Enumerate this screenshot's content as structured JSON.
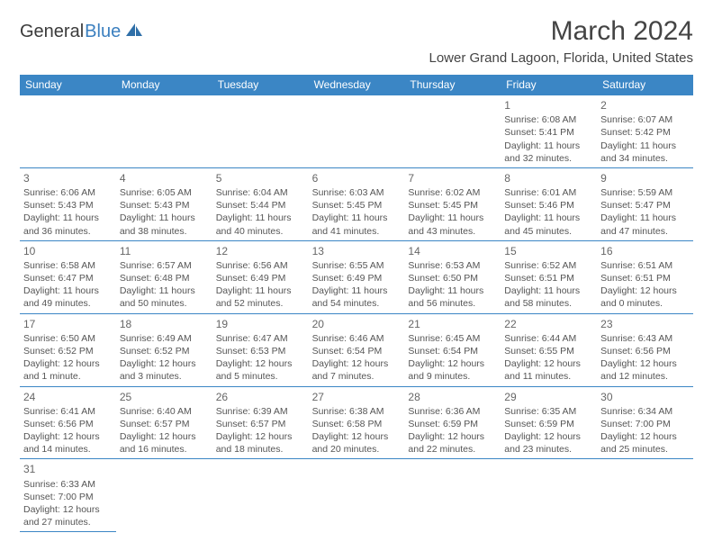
{
  "logo": {
    "word1": "General",
    "word2": "Blue"
  },
  "title": "March 2024",
  "location": "Lower Grand Lagoon, Florida, United States",
  "header_bg": "#3b86c5",
  "header_text_color": "#ffffff",
  "border_color": "#3b86c5",
  "text_color": "#555555",
  "weekdays": [
    "Sunday",
    "Monday",
    "Tuesday",
    "Wednesday",
    "Thursday",
    "Friday",
    "Saturday"
  ],
  "first_weekday_index": 5,
  "days": [
    {
      "n": 1,
      "sunrise": "6:08 AM",
      "sunset": "5:41 PM",
      "daylight": "11 hours and 32 minutes."
    },
    {
      "n": 2,
      "sunrise": "6:07 AM",
      "sunset": "5:42 PM",
      "daylight": "11 hours and 34 minutes."
    },
    {
      "n": 3,
      "sunrise": "6:06 AM",
      "sunset": "5:43 PM",
      "daylight": "11 hours and 36 minutes."
    },
    {
      "n": 4,
      "sunrise": "6:05 AM",
      "sunset": "5:43 PM",
      "daylight": "11 hours and 38 minutes."
    },
    {
      "n": 5,
      "sunrise": "6:04 AM",
      "sunset": "5:44 PM",
      "daylight": "11 hours and 40 minutes."
    },
    {
      "n": 6,
      "sunrise": "6:03 AM",
      "sunset": "5:45 PM",
      "daylight": "11 hours and 41 minutes."
    },
    {
      "n": 7,
      "sunrise": "6:02 AM",
      "sunset": "5:45 PM",
      "daylight": "11 hours and 43 minutes."
    },
    {
      "n": 8,
      "sunrise": "6:01 AM",
      "sunset": "5:46 PM",
      "daylight": "11 hours and 45 minutes."
    },
    {
      "n": 9,
      "sunrise": "5:59 AM",
      "sunset": "5:47 PM",
      "daylight": "11 hours and 47 minutes."
    },
    {
      "n": 10,
      "sunrise": "6:58 AM",
      "sunset": "6:47 PM",
      "daylight": "11 hours and 49 minutes."
    },
    {
      "n": 11,
      "sunrise": "6:57 AM",
      "sunset": "6:48 PM",
      "daylight": "11 hours and 50 minutes."
    },
    {
      "n": 12,
      "sunrise": "6:56 AM",
      "sunset": "6:49 PM",
      "daylight": "11 hours and 52 minutes."
    },
    {
      "n": 13,
      "sunrise": "6:55 AM",
      "sunset": "6:49 PM",
      "daylight": "11 hours and 54 minutes."
    },
    {
      "n": 14,
      "sunrise": "6:53 AM",
      "sunset": "6:50 PM",
      "daylight": "11 hours and 56 minutes."
    },
    {
      "n": 15,
      "sunrise": "6:52 AM",
      "sunset": "6:51 PM",
      "daylight": "11 hours and 58 minutes."
    },
    {
      "n": 16,
      "sunrise": "6:51 AM",
      "sunset": "6:51 PM",
      "daylight": "12 hours and 0 minutes."
    },
    {
      "n": 17,
      "sunrise": "6:50 AM",
      "sunset": "6:52 PM",
      "daylight": "12 hours and 1 minute."
    },
    {
      "n": 18,
      "sunrise": "6:49 AM",
      "sunset": "6:52 PM",
      "daylight": "12 hours and 3 minutes."
    },
    {
      "n": 19,
      "sunrise": "6:47 AM",
      "sunset": "6:53 PM",
      "daylight": "12 hours and 5 minutes."
    },
    {
      "n": 20,
      "sunrise": "6:46 AM",
      "sunset": "6:54 PM",
      "daylight": "12 hours and 7 minutes."
    },
    {
      "n": 21,
      "sunrise": "6:45 AM",
      "sunset": "6:54 PM",
      "daylight": "12 hours and 9 minutes."
    },
    {
      "n": 22,
      "sunrise": "6:44 AM",
      "sunset": "6:55 PM",
      "daylight": "12 hours and 11 minutes."
    },
    {
      "n": 23,
      "sunrise": "6:43 AM",
      "sunset": "6:56 PM",
      "daylight": "12 hours and 12 minutes."
    },
    {
      "n": 24,
      "sunrise": "6:41 AM",
      "sunset": "6:56 PM",
      "daylight": "12 hours and 14 minutes."
    },
    {
      "n": 25,
      "sunrise": "6:40 AM",
      "sunset": "6:57 PM",
      "daylight": "12 hours and 16 minutes."
    },
    {
      "n": 26,
      "sunrise": "6:39 AM",
      "sunset": "6:57 PM",
      "daylight": "12 hours and 18 minutes."
    },
    {
      "n": 27,
      "sunrise": "6:38 AM",
      "sunset": "6:58 PM",
      "daylight": "12 hours and 20 minutes."
    },
    {
      "n": 28,
      "sunrise": "6:36 AM",
      "sunset": "6:59 PM",
      "daylight": "12 hours and 22 minutes."
    },
    {
      "n": 29,
      "sunrise": "6:35 AM",
      "sunset": "6:59 PM",
      "daylight": "12 hours and 23 minutes."
    },
    {
      "n": 30,
      "sunrise": "6:34 AM",
      "sunset": "7:00 PM",
      "daylight": "12 hours and 25 minutes."
    },
    {
      "n": 31,
      "sunrise": "6:33 AM",
      "sunset": "7:00 PM",
      "daylight": "12 hours and 27 minutes."
    }
  ],
  "labels": {
    "sunrise": "Sunrise:",
    "sunset": "Sunset:",
    "daylight": "Daylight:"
  }
}
